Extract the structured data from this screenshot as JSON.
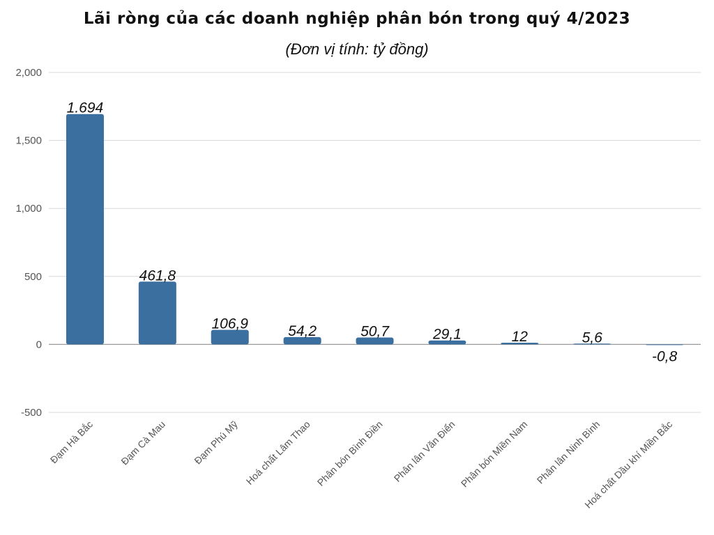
{
  "chart_data": {
    "type": "bar",
    "title": "Lãi ròng của các doanh nghiệp phân bón trong quý 4/2023",
    "subtitle": "(Đơn vị tính: tỷ đồng)",
    "categories": [
      "Đạm Hà Bắc",
      "Đạm Cà Mau",
      "Đạm Phú Mỹ",
      "Hoá chất Lâm Thao",
      "Phân bón Bình Điền",
      "Phân lân Văn Điển",
      "Phân bón Miền Nam",
      "Phân lân Ninh Bình",
      "Hoá chất Dầu khí Miền Bắc"
    ],
    "values": [
      1694,
      461.8,
      106.9,
      54.2,
      50.7,
      29.1,
      12,
      5.6,
      -0.8
    ],
    "data_labels": [
      "1.694",
      "461,8",
      "106,9",
      "54,2",
      "50,7",
      "29,1",
      "12",
      "5,6",
      "-0,8"
    ],
    "ylim": [
      -500,
      2000
    ],
    "yticks": [
      -500,
      0,
      500,
      1000,
      1500,
      2000
    ],
    "ytick_labels": [
      "-500",
      "0",
      "500",
      "1,000",
      "1,500",
      "2,000"
    ],
    "grid": true,
    "bar_color": "#3a6f9f"
  }
}
